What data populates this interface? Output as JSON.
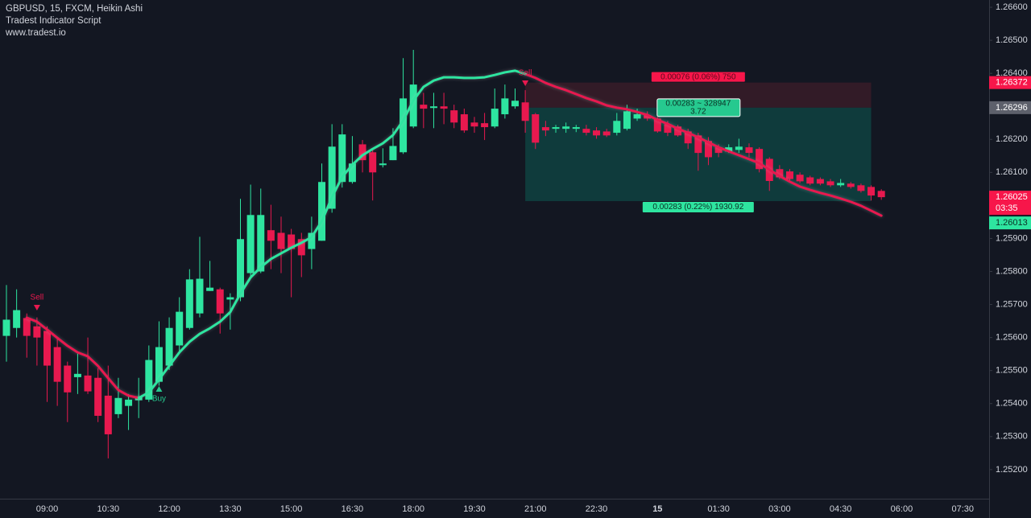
{
  "chart_data": {
    "type": "candlestick",
    "title": "GBPUSD, 15, FXCM, Heikin Ashi",
    "subtitle": "Tradest Indicator Script",
    "source": "www.tradest.io",
    "categories": [
      null,
      null,
      null,
      null,
      "09:00",
      null,
      null,
      null,
      null,
      null,
      "10:30",
      null,
      null,
      null,
      null,
      null,
      "12:00",
      null,
      null,
      null,
      null,
      null,
      "13:30",
      null,
      null,
      null,
      null,
      null,
      "15:00",
      null,
      null,
      null,
      null,
      null,
      "16:30",
      null,
      null,
      null,
      null,
      null,
      "18:00",
      null,
      null,
      null,
      null,
      null,
      "19:30",
      null,
      null,
      null,
      null,
      null,
      "21:00",
      null,
      null,
      null,
      null,
      null,
      "22:30",
      null,
      null,
      null,
      null,
      null,
      "15",
      null,
      null,
      null,
      null,
      null,
      "01:30",
      null,
      null,
      null,
      null,
      null,
      "03:00",
      null,
      null,
      null,
      null,
      null,
      "04:30",
      null,
      null,
      null,
      null,
      null,
      "06:00",
      null,
      null,
      null,
      null,
      null,
      "07:30"
    ],
    "open": [
      1.25605,
      1.25629,
      1.25659,
      1.25634,
      1.2562,
      1.25571,
      1.25515,
      1.2548,
      1.25485,
      1.25478,
      1.25424,
      1.25368,
      1.25393,
      1.2541,
      1.25412,
      1.25466,
      1.25515,
      1.25576,
      1.25629,
      1.25673,
      1.25741,
      1.25746,
      1.25715,
      1.25722,
      1.25795,
      1.258,
      1.25925,
      1.25917,
      1.25912,
      1.25898,
      1.25868,
      1.25893,
      1.2599,
      1.26071,
      1.26071,
      1.26185,
      1.26161,
      1.26122,
      1.26137,
      1.26161,
      1.26239,
      1.26305,
      1.26295,
      1.263,
      1.26288,
      1.26276,
      1.26251,
      1.26249,
      1.26239,
      1.26276,
      1.263,
      1.26312,
      1.26276,
      1.26237,
      1.26232,
      1.26232,
      1.26232,
      1.26232,
      1.26227,
      1.26224,
      1.2622,
      1.26232,
      1.26263,
      1.26273,
      1.26263,
      1.26246,
      1.26239,
      1.26224,
      1.26212,
      1.26195,
      1.26176,
      1.26163,
      1.26168,
      1.26176,
      1.26171,
      1.26141,
      1.2611,
      1.26103,
      1.26093,
      1.26085,
      1.2608,
      1.26073,
      1.26061,
      1.26066,
      1.26061,
      1.26056,
      1.26044,
      null,
      null,
      null,
      null,
      null,
      null,
      null,
      null
    ],
    "high": [
      1.25759,
      1.25746,
      1.25673,
      1.25661,
      1.25634,
      1.256,
      1.25527,
      1.25551,
      1.256,
      1.25507,
      1.25515,
      1.25478,
      1.25429,
      1.25478,
      1.25576,
      1.25649,
      1.25661,
      1.25722,
      1.25807,
      1.25905,
      1.25832,
      1.25751,
      1.25734,
      1.2602,
      1.26063,
      1.26051,
      1.26002,
      1.25966,
      1.25929,
      1.25917,
      1.25966,
      1.26127,
      1.26246,
      1.26246,
      1.2621,
      1.26198,
      1.26173,
      1.26173,
      1.26234,
      1.26446,
      1.26471,
      1.26341,
      1.26341,
      1.26341,
      1.26305,
      1.26293,
      1.26268,
      1.2628,
      1.26354,
      1.26366,
      1.26354,
      1.26349,
      1.2628,
      1.26256,
      1.26244,
      1.26251,
      1.26244,
      1.26244,
      1.26237,
      1.26232,
      1.2628,
      1.26305,
      1.26293,
      1.26285,
      1.26268,
      1.26256,
      1.26244,
      1.26232,
      1.2622,
      1.26207,
      1.26185,
      1.26185,
      1.26202,
      1.26188,
      1.26176,
      1.26146,
      1.26122,
      1.2611,
      1.261,
      1.2609,
      1.26085,
      1.2608,
      1.2608,
      1.26071,
      1.26066,
      1.26061,
      1.26049,
      null,
      null,
      null,
      null,
      null,
      null,
      null,
      null
    ],
    "low": [
      1.25527,
      1.256,
      1.25539,
      1.25515,
      1.25405,
      1.25393,
      1.25344,
      1.25429,
      1.25429,
      1.25344,
      1.25234,
      1.25356,
      1.2532,
      1.25356,
      1.25405,
      1.25454,
      1.25502,
      1.25551,
      1.25624,
      1.25661,
      1.25741,
      1.25612,
      1.25624,
      1.2571,
      1.25783,
      1.25795,
      1.25807,
      1.25795,
      1.25722,
      1.25783,
      1.25807,
      1.25893,
      1.25978,
      1.26054,
      1.26066,
      1.261,
      1.26015,
      1.26115,
      1.26137,
      1.26156,
      1.26234,
      1.26234,
      1.26234,
      1.26246,
      1.26234,
      1.2622,
      1.2622,
      1.26198,
      1.26234,
      1.26263,
      1.26293,
      1.2622,
      1.26171,
      1.2621,
      1.2622,
      1.2622,
      1.26222,
      1.26212,
      1.26202,
      1.26207,
      1.26212,
      1.26227,
      1.26256,
      1.26256,
      1.2622,
      1.2621,
      1.26208,
      1.26171,
      1.26105,
      1.26122,
      1.26146,
      1.26159,
      1.26159,
      1.26146,
      1.261,
      1.26044,
      1.2608,
      1.26073,
      1.26068,
      1.26061,
      1.26061,
      1.26056,
      1.26056,
      1.26051,
      1.26039,
      1.26015,
      1.26017,
      null,
      null,
      null,
      null,
      null,
      null,
      null,
      null
    ],
    "close": [
      1.25654,
      1.25683,
      1.25605,
      1.256,
      1.25515,
      1.25466,
      1.25434,
      1.2549,
      1.25437,
      1.25363,
      1.25307,
      1.25417,
      1.25412,
      1.25422,
      1.25532,
      1.25571,
      1.25629,
      1.25678,
      1.25776,
      1.25778,
      1.25751,
      1.25673,
      1.25722,
      1.25898,
      1.25971,
      1.25971,
      1.25893,
      1.25868,
      1.25868,
      1.25849,
      1.25917,
      1.26071,
      1.26178,
      1.26215,
      1.26127,
      1.26137,
      1.261,
      1.26127,
      1.2618,
      1.26324,
      1.26366,
      1.26293,
      1.263,
      1.26293,
      1.26251,
      1.26227,
      1.26239,
      1.26237,
      1.26293,
      1.26324,
      1.26317,
      1.26256,
      1.2619,
      1.26227,
      1.26237,
      1.26239,
      1.26237,
      1.2622,
      1.26212,
      1.26212,
      1.26256,
      1.26285,
      1.26276,
      1.26263,
      1.26224,
      1.2622,
      1.26212,
      1.26188,
      1.26159,
      1.26146,
      1.26159,
      1.26176,
      1.26178,
      1.26159,
      1.2611,
      1.26074,
      1.26085,
      1.2608,
      1.26073,
      1.26066,
      1.26066,
      1.26061,
      1.26068,
      1.26056,
      1.26044,
      1.2603,
      1.26025,
      null,
      null,
      null,
      null,
      null,
      null,
      null,
      null
    ],
    "up_color": "#2ee5a0",
    "down_color": "#e8194f",
    "lines": [
      {
        "color": "#e8194f",
        "values": [
          null,
          null,
          1.2566,
          1.25648,
          1.25624,
          1.25599,
          1.25575,
          1.25555,
          1.25543,
          1.25514,
          1.25477,
          1.25441,
          1.25424,
          1.25417,
          null,
          null,
          null,
          null,
          null,
          null,
          null,
          null,
          null,
          null,
          null,
          null,
          null,
          null,
          null,
          null,
          null,
          null,
          null,
          null,
          null,
          null,
          null,
          null,
          null,
          null,
          null,
          null,
          null,
          null,
          null,
          null,
          null,
          null,
          null,
          null,
          null,
          1.26398,
          1.26386,
          1.26371,
          1.26359,
          1.26349,
          1.26337,
          1.26325,
          1.26315,
          1.26303,
          1.26296,
          1.26291,
          1.26283,
          1.26274,
          1.26259,
          1.26247,
          1.26232,
          1.2622,
          1.26206,
          1.26191,
          1.26176,
          1.26164,
          1.26152,
          1.2614,
          1.26128,
          1.26108,
          1.26089,
          1.26072,
          1.26057,
          1.26047,
          1.26038,
          1.2603,
          1.26021,
          1.26011,
          1.25999,
          1.25984,
          1.25969,
          null,
          null,
          null,
          null,
          null,
          null,
          null,
          null
        ]
      },
      {
        "color": "#2ee5a0",
        "values": [
          null,
          null,
          null,
          null,
          null,
          null,
          null,
          null,
          null,
          null,
          null,
          null,
          null,
          1.25417,
          1.25434,
          1.25473,
          1.25514,
          1.25555,
          1.25587,
          1.25611,
          1.25628,
          1.25648,
          1.25677,
          1.25733,
          1.25782,
          1.25813,
          1.25838,
          1.25855,
          1.25872,
          1.25887,
          1.25904,
          1.25952,
          1.26025,
          1.26086,
          1.26123,
          1.26152,
          1.26171,
          1.26188,
          1.26213,
          1.26257,
          1.26318,
          1.26359,
          1.26378,
          1.26388,
          1.26388,
          1.26386,
          1.26386,
          1.26388,
          1.26395,
          1.26403,
          1.26408,
          1.26398,
          null,
          null,
          null,
          null,
          null,
          null,
          null,
          null,
          null,
          null,
          null,
          null,
          null,
          null,
          null,
          null,
          null,
          null,
          null,
          null,
          null,
          null,
          null,
          null,
          null,
          null,
          null,
          null,
          null,
          null,
          null,
          null,
          null,
          null,
          null,
          null,
          null,
          null,
          null,
          null,
          null
        ]
      }
    ],
    "signals": [
      {
        "label": "Sell",
        "color": "#e8194f"
      },
      {
        "label": "Buy",
        "color": "#26c98f"
      },
      {
        "label": "Sell",
        "color": "#e8194f"
      }
    ],
    "position": {
      "entry": 1.26296,
      "stop": 1.26372,
      "target": 1.26013,
      "stop_label": "0.00076 (0.06%) 750",
      "entry_label": [
        "0.00283 ~ 328947",
        "3.72"
      ],
      "target_label": "0.00283 (0.22%) 1930.92",
      "entry_color": "#5d606b",
      "stop_color": "#f7164a",
      "target_color": "#2ee5a0"
    },
    "last_price": 1.26025,
    "last_price_color": "#f7164a",
    "countdown": "03:35",
    "ylim": [
      1.25112,
      1.26622
    ],
    "yticks": [
      {
        "value": 1.266,
        "label": "1.26600"
      },
      {
        "value": 1.265,
        "label": "1.26500"
      },
      {
        "value": 1.264,
        "label": "1.26400"
      },
      {
        "value": 1.262,
        "label": "1.26200"
      },
      {
        "value": 1.261,
        "label": "1.26100"
      },
      {
        "value": 1.259,
        "label": "1.25900"
      },
      {
        "value": 1.258,
        "label": "1.25800"
      },
      {
        "value": 1.257,
        "label": "1.25700"
      },
      {
        "value": 1.256,
        "label": "1.25600"
      },
      {
        "value": 1.255,
        "label": "1.25500"
      },
      {
        "value": 1.254,
        "label": "1.25400"
      },
      {
        "value": 1.253,
        "label": "1.25300"
      },
      {
        "value": 1.252,
        "label": "1.25200"
      }
    ],
    "grid": false
  }
}
